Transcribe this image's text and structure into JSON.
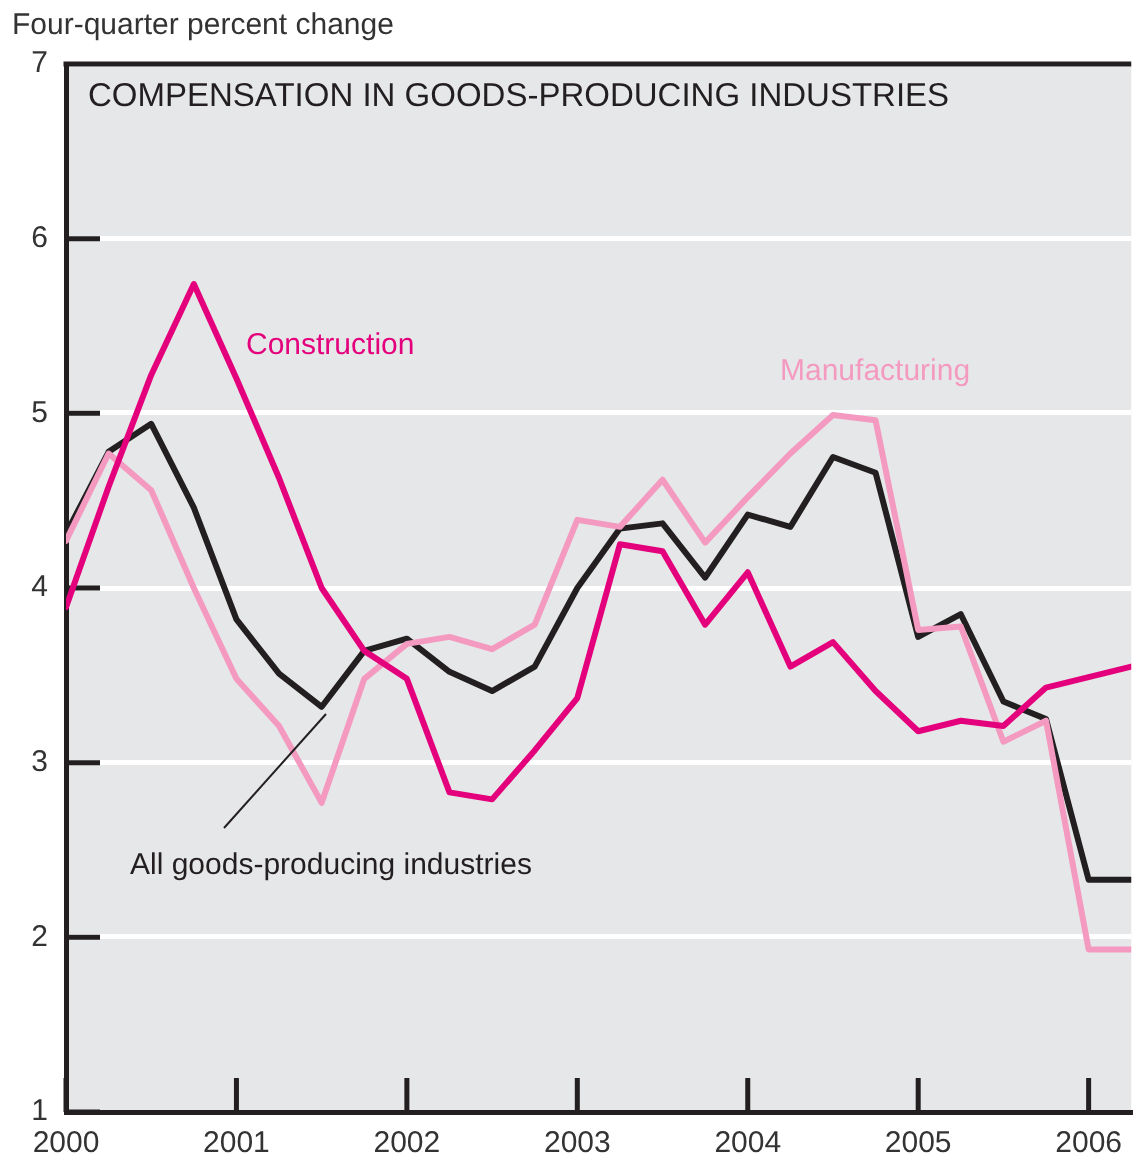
{
  "chart_data": {
    "type": "line",
    "title": "COMPENSATION IN GOODS-PRODUCING INDUSTRIES",
    "ylabel": "Four-quarter percent change",
    "x": [
      2000,
      2000.25,
      2000.5,
      2000.75,
      2001,
      2001.25,
      2001.5,
      2001.75,
      2002,
      2002.25,
      2002.5,
      2002.75,
      2003,
      2003.25,
      2003.5,
      2003.75,
      2004,
      2004.25,
      2004.5,
      2004.75,
      2005,
      2005.25,
      2005.5,
      2005.75,
      2006,
      2006.25
    ],
    "series": [
      {
        "name": "Construction",
        "color": "#e4007c",
        "values": [
          3.89,
          4.58,
          5.22,
          5.74,
          5.2,
          4.63,
          4.0,
          3.64,
          3.48,
          2.83,
          2.79,
          3.07,
          3.37,
          4.25,
          4.21,
          3.79,
          4.09,
          3.55,
          3.69,
          3.41,
          3.18,
          3.24,
          3.21,
          3.43,
          3.49,
          3.55
        ]
      },
      {
        "name": "Manufacturing",
        "color": "#f49ac1",
        "values": [
          4.27,
          4.77,
          4.56,
          4.0,
          3.48,
          3.21,
          2.77,
          3.48,
          3.68,
          3.72,
          3.65,
          3.79,
          4.39,
          4.35,
          4.62,
          4.26,
          4.52,
          4.77,
          4.99,
          4.96,
          3.76,
          3.78,
          3.12,
          3.24,
          1.93,
          1.93
        ]
      },
      {
        "name": "All goods-producing industries",
        "color": "#231f20",
        "values": [
          4.31,
          4.78,
          4.94,
          4.46,
          3.82,
          3.51,
          3.32,
          3.64,
          3.71,
          3.52,
          3.41,
          3.55,
          4.0,
          4.34,
          4.37,
          4.06,
          4.42,
          4.35,
          4.75,
          4.66,
          3.72,
          3.85,
          3.35,
          3.25,
          2.33,
          2.33
        ]
      }
    ],
    "xlim": [
      2000,
      2006.25
    ],
    "xticks": [
      2000,
      2001,
      2002,
      2003,
      2004,
      2005,
      2006
    ],
    "ylim": [
      1,
      7
    ],
    "yticks": [
      1,
      2,
      3,
      4,
      5,
      6,
      7
    ],
    "grid": "y",
    "legend": false
  }
}
